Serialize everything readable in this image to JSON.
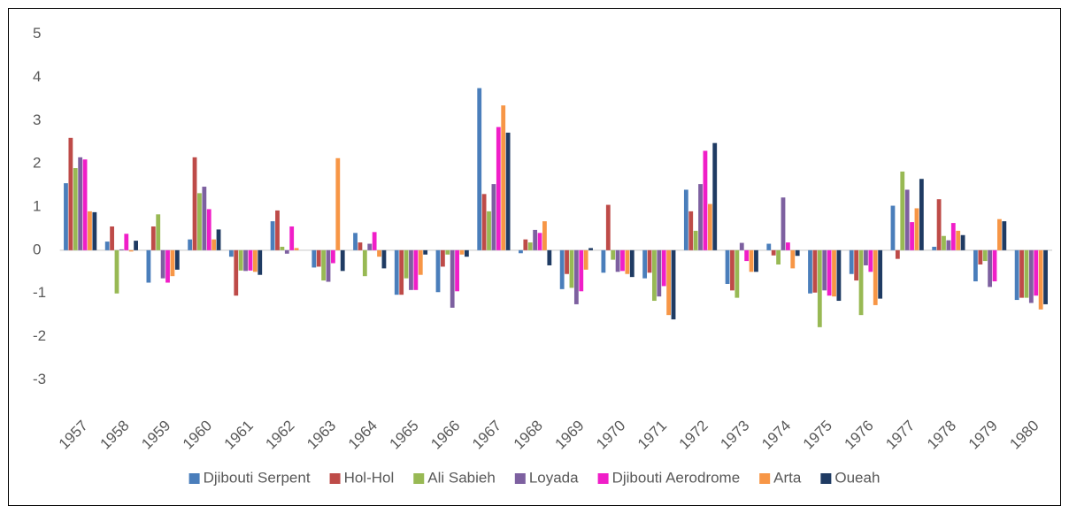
{
  "chart_data": {
    "type": "bar",
    "categories": [
      "1957",
      "1958",
      "1959",
      "1960",
      "1961",
      "1962",
      "1963",
      "1964",
      "1965",
      "1966",
      "1967",
      "1968",
      "1969",
      "1970",
      "1971",
      "1972",
      "1973",
      "1974",
      "1975",
      "1976",
      "1977",
      "1978",
      "1979",
      "1980"
    ],
    "series": [
      {
        "name": "Djibouti Serpent",
        "color": "#4a7ebb",
        "values": [
          1.55,
          0.2,
          -0.75,
          0.25,
          -0.15,
          0.67,
          -0.4,
          0.4,
          -1.03,
          -0.97,
          3.75,
          -0.07,
          -0.9,
          -0.52,
          -0.65,
          1.4,
          -0.78,
          0.15,
          -1.0,
          -0.55,
          1.03,
          0.08,
          -0.72,
          -1.15
        ]
      },
      {
        "name": "Hol-Hol",
        "color": "#be4b48",
        "values": [
          2.6,
          0.55,
          0.55,
          2.15,
          -1.05,
          0.92,
          -0.38,
          0.18,
          -1.03,
          -0.38,
          1.3,
          0.25,
          -0.55,
          1.05,
          -0.52,
          0.9,
          -0.93,
          -0.12,
          -0.98,
          -0.7,
          -0.2,
          1.18,
          -0.33,
          -1.1
        ]
      },
      {
        "name": "Ali Sabieh",
        "color": "#98b954",
        "values": [
          1.9,
          -1.0,
          0.83,
          1.32,
          -0.47,
          0.08,
          -0.7,
          -0.6,
          -0.65,
          -0.1,
          0.9,
          0.18,
          -0.87,
          -0.22,
          -1.17,
          0.45,
          -1.1,
          -0.33,
          -1.78,
          -1.5,
          1.82,
          0.33,
          -0.25,
          -1.1
        ]
      },
      {
        "name": "Loyada",
        "color": "#7d60a0",
        "values": [
          2.15,
          0.02,
          -0.65,
          1.47,
          -0.48,
          -0.08,
          -0.73,
          0.15,
          -0.92,
          -1.33,
          1.53,
          0.47,
          -1.25,
          -0.5,
          -1.07,
          1.53,
          0.17,
          1.22,
          -0.93,
          -0.35,
          1.4,
          0.23,
          -0.85,
          -1.22
        ]
      },
      {
        "name": "Djibouti Aerodrome",
        "color": "#f01ec8",
        "values": [
          2.1,
          0.38,
          -0.75,
          0.95,
          -0.47,
          0.55,
          -0.3,
          0.42,
          -0.92,
          -0.95,
          2.85,
          0.4,
          -0.95,
          -0.48,
          -0.83,
          2.3,
          -0.25,
          0.18,
          -1.05,
          -0.5,
          0.65,
          0.63,
          -0.72,
          -1.05
        ]
      },
      {
        "name": "Arta",
        "color": "#f79646",
        "values": [
          0.9,
          -0.03,
          -0.6,
          0.25,
          -0.5,
          0.05,
          2.13,
          -0.15,
          -0.57,
          -0.1,
          3.35,
          0.67,
          -0.45,
          -0.55,
          -1.5,
          1.07,
          -0.5,
          -0.42,
          -1.07,
          -1.27,
          0.97,
          0.45,
          0.72,
          -1.37
        ]
      },
      {
        "name": "Oueah",
        "color": "#1f3b63",
        "values": [
          0.88,
          0.22,
          -0.45,
          0.48,
          -0.57,
          0.0,
          -0.48,
          -0.42,
          -0.1,
          -0.15,
          2.72,
          -0.35,
          0.05,
          -0.62,
          -1.6,
          2.48,
          -0.5,
          -0.13,
          -1.17,
          -1.12,
          1.65,
          0.35,
          0.67,
          -1.25
        ]
      }
    ],
    "ylim": [
      -3.4,
      5.4
    ],
    "yticks": [
      -3,
      -2,
      -1,
      0,
      1,
      2,
      3,
      4,
      5
    ],
    "grid": false,
    "legend": "bottom"
  }
}
